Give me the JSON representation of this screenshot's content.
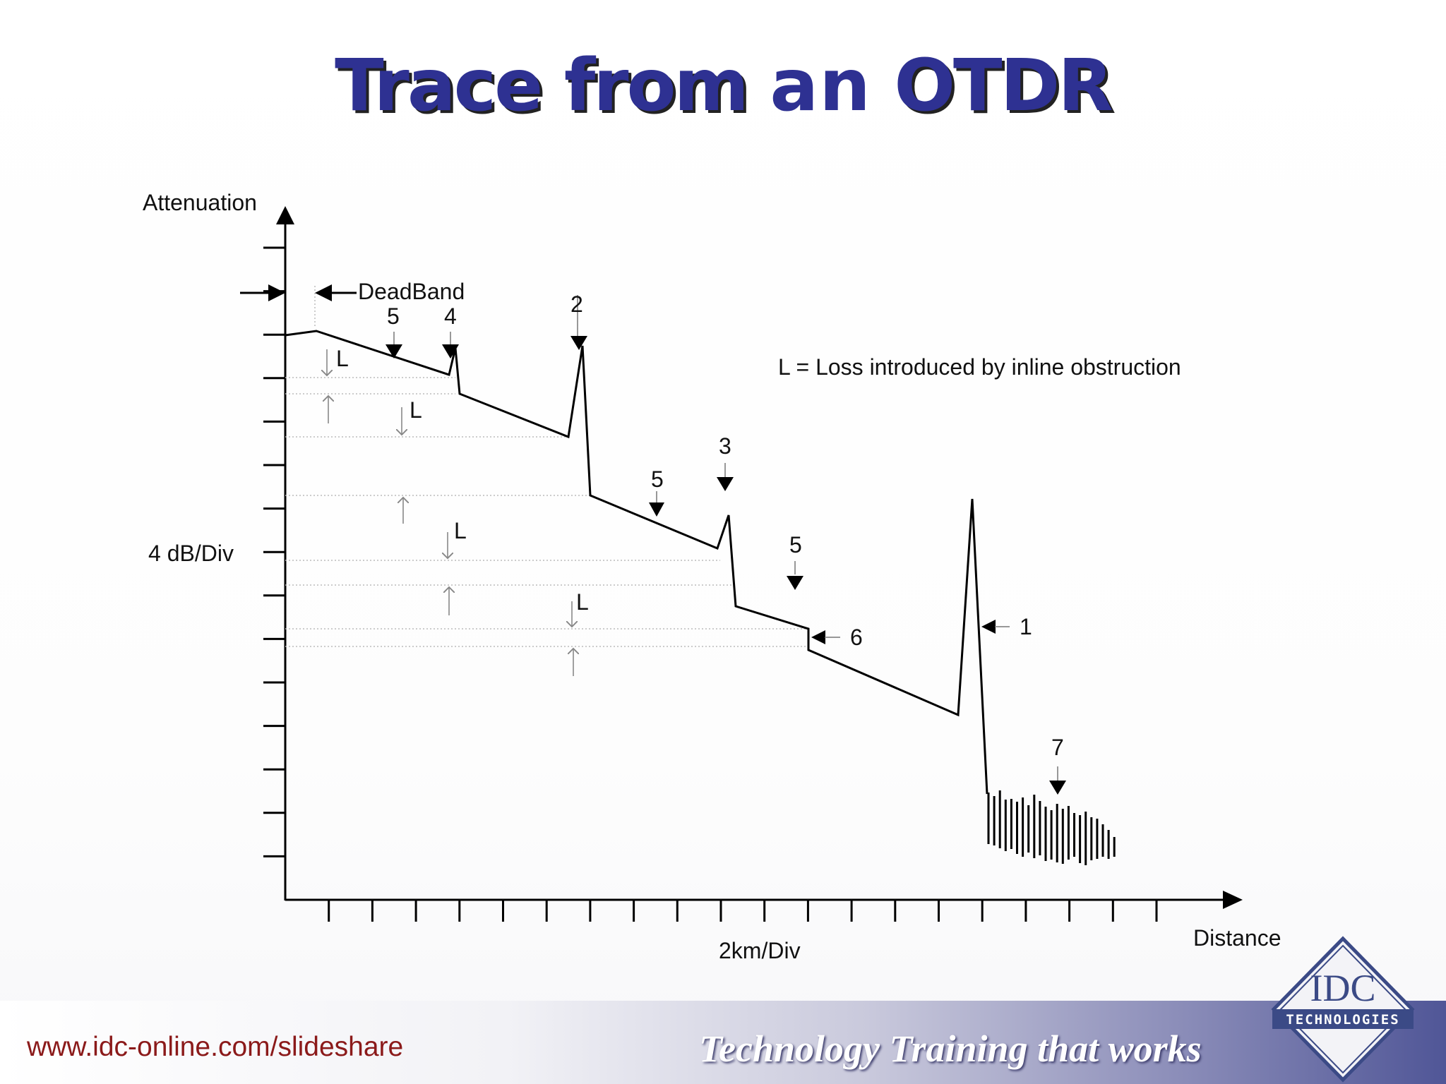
{
  "slide": {
    "title_part1": "Trace from",
    "title_part2": "an",
    "title_part3": "OTDR"
  },
  "diagram": {
    "y_axis_label": "Attenuation",
    "x_axis_label": "Distance",
    "y_scale_label": "4 dB/Div",
    "x_scale_label": "2km/Div",
    "deadband_label": "DeadBand",
    "legend_note": "L = Loss introduced by inline obstruction",
    "loss_label": "L",
    "markers": {
      "m5a": "5",
      "m4": "4",
      "m2": "2",
      "m3": "3",
      "m5b": "5",
      "m5c": "5",
      "m6": "6",
      "m1": "1",
      "m7": "7"
    }
  },
  "footer": {
    "url": "www.idc-online.com/slideshare",
    "tagline": "Technology Training that works",
    "logo_top": "IDC",
    "logo_bottom": "TECHNOLOGIES"
  }
}
